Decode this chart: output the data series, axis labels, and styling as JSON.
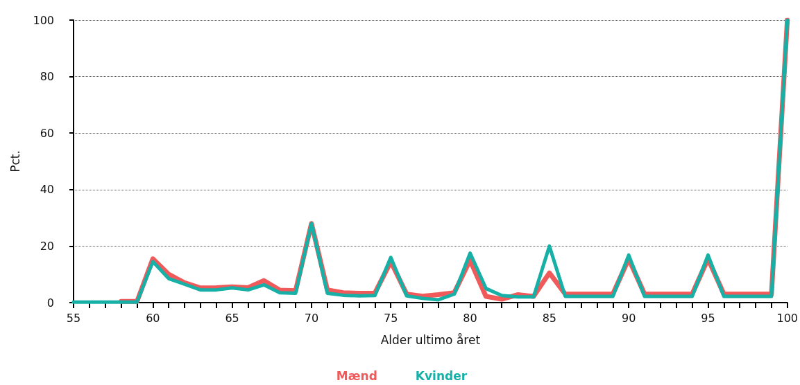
{
  "chart_data": {
    "type": "line",
    "xlabel": "Alder ultimo året",
    "ylabel": "Pct.",
    "x": [
      55,
      56,
      57,
      58,
      59,
      60,
      61,
      62,
      63,
      64,
      65,
      66,
      67,
      68,
      69,
      70,
      71,
      72,
      73,
      74,
      75,
      76,
      77,
      78,
      79,
      80,
      81,
      82,
      83,
      84,
      85,
      86,
      87,
      88,
      89,
      90,
      91,
      92,
      93,
      94,
      95,
      96,
      97,
      98,
      99,
      100
    ],
    "series": [
      {
        "name": "Mænd",
        "color": "#f05a5a",
        "values": [
          null,
          null,
          null,
          0.4,
          0.4,
          15.5,
          10,
          7,
          5.2,
          5.3,
          5.6,
          5.3,
          7.8,
          4.4,
          4.2,
          28,
          4.5,
          3.5,
          3.3,
          3.4,
          14.5,
          3,
          2.3,
          2.8,
          3.5,
          15,
          2.2,
          1.2,
          2.8,
          2.2,
          10.5,
          3,
          3,
          3,
          3,
          15.5,
          3,
          3,
          3,
          3,
          15.5,
          3,
          3,
          3,
          3,
          100
        ]
      },
      {
        "name": "Kvinder",
        "color": "#17b0a6",
        "values": [
          0.2,
          0.2,
          0.2,
          0.2,
          0.2,
          14.5,
          8.5,
          6.5,
          4.5,
          4.5,
          5.2,
          4.5,
          6.3,
          3.5,
          3.3,
          28,
          3.3,
          2.6,
          2.4,
          2.5,
          16,
          2.4,
          1.5,
          1,
          3,
          17.5,
          5,
          2.5,
          2,
          2,
          20,
          2.2,
          2.2,
          2.2,
          2.2,
          16.8,
          2.2,
          2.2,
          2.2,
          2.2,
          16.8,
          2.2,
          2.2,
          2.2,
          2.2,
          100
        ]
      }
    ],
    "xlim": [
      55,
      100
    ],
    "xticks": [
      55,
      {
        "value": 56,
        "label": null
      },
      {
        "value": 57,
        "label": null
      },
      {
        "value": 58,
        "label": null
      },
      {
        "value": 59,
        "label": null
      },
      60,
      {
        "value": 61,
        "label": null
      },
      {
        "value": 62,
        "label": null
      },
      {
        "value": 63,
        "label": null
      },
      {
        "value": 64,
        "label": null
      },
      65,
      {
        "value": 66,
        "label": null
      },
      {
        "value": 67,
        "label": null
      },
      {
        "value": 68,
        "label": null
      },
      {
        "value": 69,
        "label": null
      },
      70,
      {
        "value": 71,
        "label": null
      },
      {
        "value": 72,
        "label": null
      },
      {
        "value": 73,
        "label": null
      },
      {
        "value": 74,
        "label": null
      },
      75,
      {
        "value": 76,
        "label": null
      },
      {
        "value": 77,
        "label": null
      },
      {
        "value": 78,
        "label": null
      },
      {
        "value": 79,
        "label": null
      },
      80,
      {
        "value": 81,
        "label": null
      },
      {
        "value": 82,
        "label": null
      },
      {
        "value": 83,
        "label": null
      },
      {
        "value": 84,
        "label": null
      },
      85,
      {
        "value": 86,
        "label": null
      },
      {
        "value": 87,
        "label": null
      },
      {
        "value": 88,
        "label": null
      },
      {
        "value": 89,
        "label": null
      },
      90,
      {
        "value": 91,
        "label": null
      },
      {
        "value": 92,
        "label": null
      },
      {
        "value": 93,
        "label": null
      },
      {
        "value": 94,
        "label": null
      },
      95,
      {
        "value": 96,
        "label": null
      },
      {
        "value": 97,
        "label": null
      },
      {
        "value": 98,
        "label": null
      },
      {
        "value": 99,
        "label": null
      },
      100
    ],
    "ylim": [
      0,
      100
    ],
    "yticks": [
      0,
      20,
      40,
      60,
      80,
      100
    ],
    "grid": "y",
    "legend": "bottom",
    "marker": "none",
    "line_style": "solid"
  }
}
